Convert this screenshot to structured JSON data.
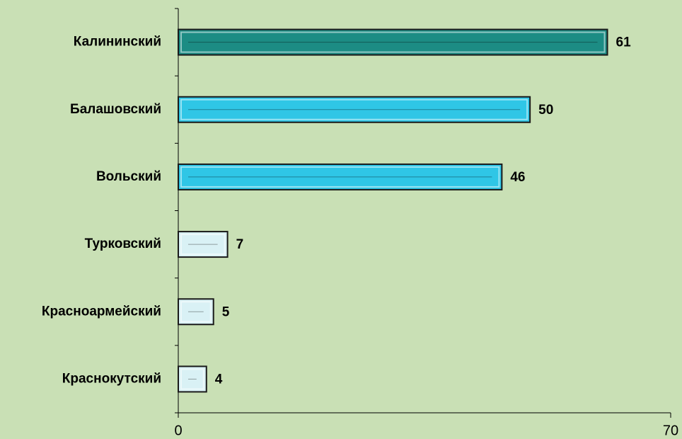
{
  "chart_data": {
    "type": "bar",
    "orientation": "horizontal",
    "categories": [
      "Калининский",
      "Балашовский",
      "Вольский",
      "Турковский",
      "Красноармейский",
      "Краснокутский"
    ],
    "values": [
      61,
      50,
      46,
      7,
      5,
      4
    ],
    "colors": [
      "#1c8c84",
      "#2fc6e6",
      "#2fc6e6",
      "#d9f1f5",
      "#d9f1f5",
      "#d9f1f5"
    ],
    "xlim": [
      0,
      70
    ],
    "xticks": [
      0,
      70
    ],
    "grid": false
  }
}
